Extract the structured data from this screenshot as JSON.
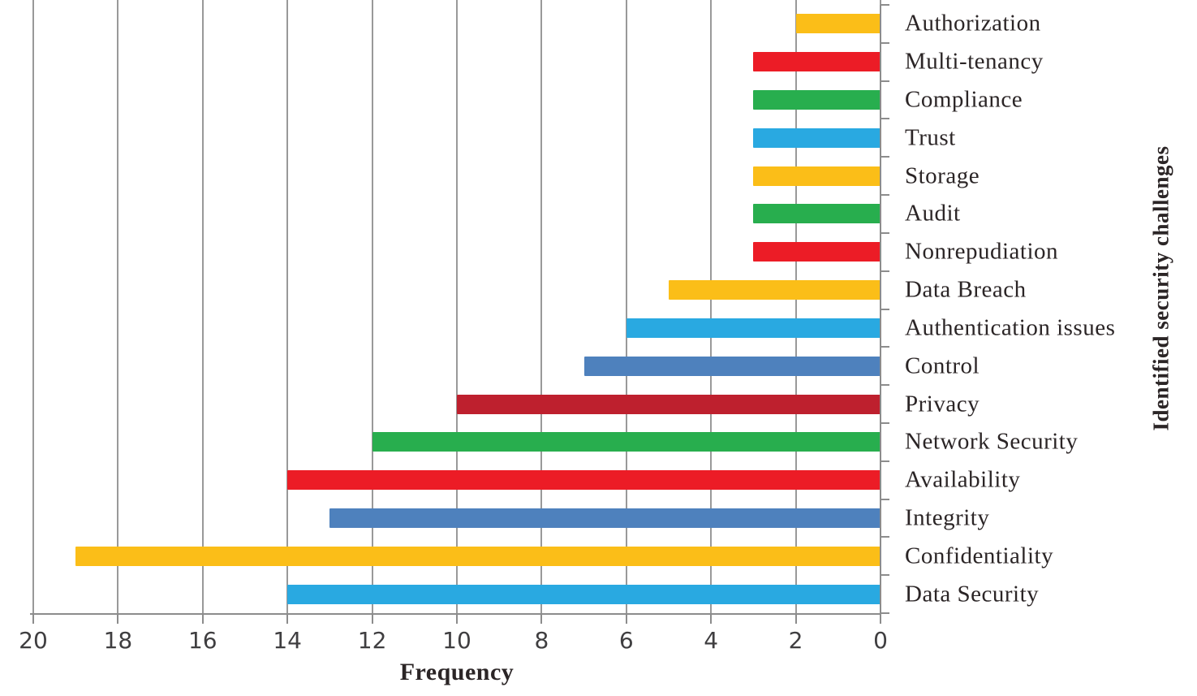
{
  "chart_data": {
    "type": "bar",
    "orientation": "horizontal",
    "value_axis": "reversed-left-to-right (20 at left, 0 at right)",
    "title": "",
    "xlabel": "Frequency",
    "ylabel": "Identified security challenges",
    "xlim": [
      0,
      20
    ],
    "x_ticks": [
      "20",
      "18",
      "16",
      "14",
      "12",
      "10",
      "8",
      "6",
      "4",
      "2",
      "0"
    ],
    "grid": true,
    "legend": false,
    "categories": [
      "Authorization",
      "Multi-tenancy",
      "Compliance",
      "Trust",
      "Storage",
      "Audit",
      "Nonrepudiation",
      "Data Breach",
      "Authentication issues",
      "Control",
      "Privacy",
      "Network Security",
      "Availability",
      "Integrity",
      "Confidentiality",
      "Data Security"
    ],
    "values": [
      2,
      3,
      3,
      3,
      3,
      3,
      3,
      5,
      6,
      7,
      10,
      12,
      14,
      13,
      19,
      14
    ],
    "bar_colors": [
      "#FBBE18",
      "#EC1C26",
      "#28AE4E",
      "#29A9E1",
      "#FBBE18",
      "#28AE4E",
      "#EC1C26",
      "#FBBE18",
      "#29A9E1",
      "#4E81BD",
      "#BE202E",
      "#28AE4E",
      "#EC1C26",
      "#4E81BD",
      "#FBBE18",
      "#29A9E1"
    ]
  },
  "style": {
    "grid_color": "#999999",
    "axis_color": "#8c8c8c",
    "tick_label_color": "#3f3e40",
    "label_color": "#2b2526",
    "background": "#ffffff"
  }
}
